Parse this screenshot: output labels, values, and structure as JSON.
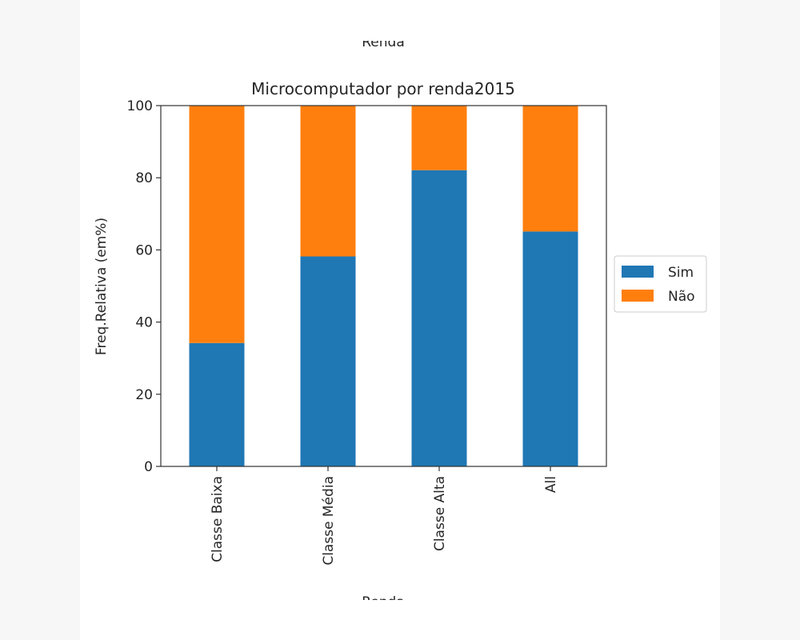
{
  "top_label_cut": "Renda",
  "chart_data": {
    "type": "bar",
    "stacked": true,
    "title": "Microcomputador por renda2015",
    "xlabel": "Renda",
    "ylabel": "Freq.Relativa (em%)",
    "ylim": [
      0,
      100
    ],
    "yticks": [
      "0",
      "20",
      "40",
      "60",
      "80",
      "100"
    ],
    "categories": [
      "Classe Baixa",
      "Classe Média",
      "Classe Alta",
      "All"
    ],
    "series": [
      {
        "name": "Sim",
        "color": "#1f77b4",
        "values": [
          34.2,
          58.2,
          82.1,
          65.1
        ]
      },
      {
        "name": "Não",
        "color": "#ff7f0e",
        "values": [
          65.8,
          41.8,
          17.9,
          34.9
        ]
      }
    ],
    "legend_position": "right"
  }
}
